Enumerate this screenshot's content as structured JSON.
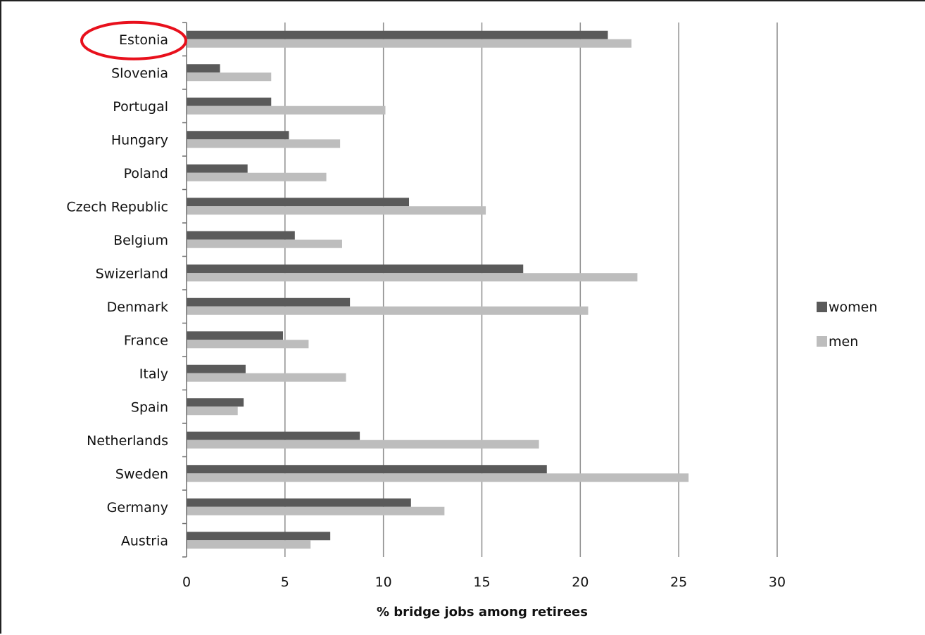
{
  "chart_data": {
    "type": "bar",
    "orientation": "horizontal",
    "categories": [
      "Estonia",
      "Slovenia",
      "Portugal",
      "Hungary",
      "Poland",
      "Czech Republic",
      "Belgium",
      "Swizerland",
      "Denmark",
      "France",
      "Italy",
      "Spain",
      "Netherlands",
      "Sweden",
      "Germany",
      "Austria"
    ],
    "series": [
      {
        "name": "women",
        "color": "#5a5a5a",
        "values": [
          21.4,
          1.7,
          4.3,
          5.2,
          3.1,
          11.3,
          5.5,
          17.1,
          8.3,
          4.9,
          3.0,
          2.9,
          8.8,
          18.3,
          11.4,
          7.3
        ]
      },
      {
        "name": "men",
        "color": "#bdbdbd",
        "values": [
          22.6,
          4.3,
          10.1,
          7.8,
          7.1,
          15.2,
          7.9,
          22.9,
          20.4,
          6.2,
          8.1,
          2.6,
          17.9,
          25.5,
          13.1,
          6.3
        ]
      }
    ],
    "x_ticks": [
      "0",
      "5",
      "10",
      "15",
      "20",
      "25",
      "30"
    ],
    "xlim": [
      0,
      30
    ],
    "xlabel": "% bridge jobs among retirees",
    "ylabel": "",
    "title": "",
    "grid": "vertical",
    "legend_position": "right",
    "highlighted_category": "Estonia",
    "highlight_color": "#e8101c"
  }
}
